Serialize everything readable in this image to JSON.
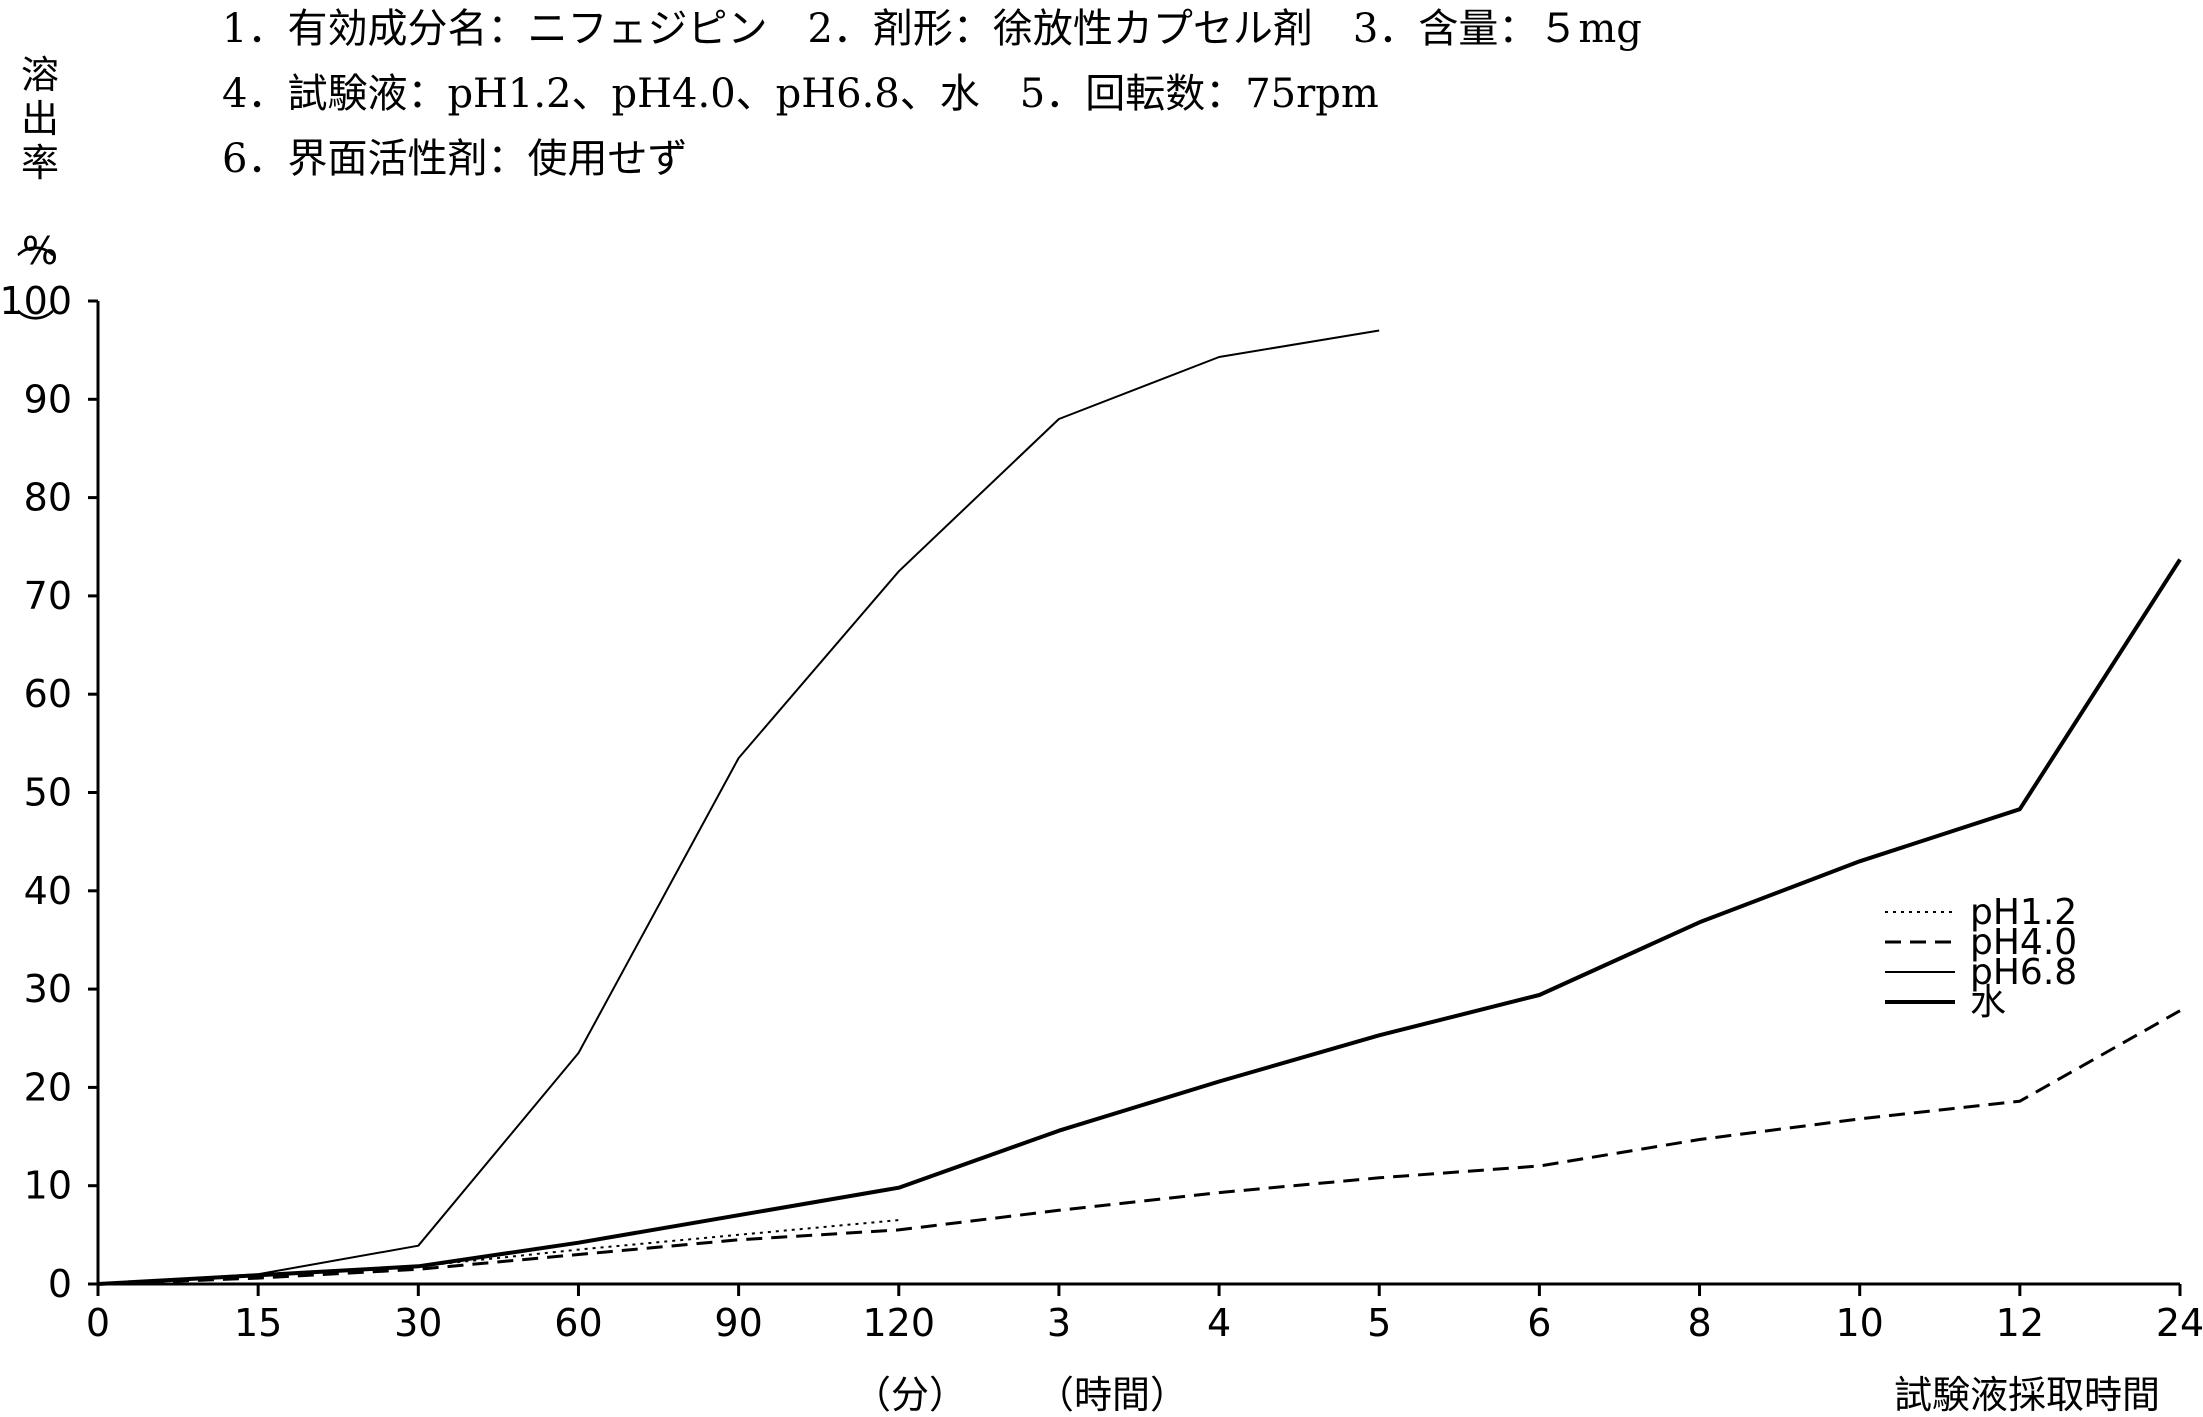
{
  "header": {
    "lines": [
      "1．有効成分名：ニフェジピン　2．剤形：徐放性カプセル剤　3．含量：５mg",
      "4．試験液：pH1.2、pH4.0、pH6.8、水　5．回転数：75rpm",
      "6．界面活性剤：使用せず"
    ]
  },
  "chart_data": {
    "type": "line",
    "title": "",
    "ylabel": "溶出率（%）",
    "xlabel": "試験液採取時間",
    "x_unit_labels": [
      "（分）",
      "（時間）"
    ],
    "ylim": [
      0,
      100
    ],
    "y_ticks": [
      0,
      10,
      20,
      30,
      40,
      50,
      60,
      70,
      80,
      90,
      100
    ],
    "categories": [
      "0",
      "15",
      "30",
      "60",
      "90",
      "120",
      "3",
      "4",
      "5",
      "6",
      "8",
      "10",
      "12",
      "24"
    ],
    "legend_position": "right",
    "grid": false,
    "series": [
      {
        "name": "pH1.2",
        "style": "dotted",
        "width": 2,
        "values": [
          0,
          0.8,
          1.8,
          3.5,
          5,
          6.5,
          null,
          null,
          null,
          null,
          null,
          null,
          null,
          null
        ]
      },
      {
        "name": "pH4.0",
        "style": "dashed",
        "width": 3,
        "values": [
          0,
          0.6,
          1.5,
          3,
          4.5,
          5.5,
          7.5,
          9.3,
          10.8,
          12,
          14.7,
          16.8,
          18.6,
          27.8
        ]
      },
      {
        "name": "pH6.8",
        "style": "solid",
        "width": 2,
        "values": [
          0,
          1,
          3.9,
          23.5,
          53.5,
          72.5,
          88,
          94.3,
          97,
          null,
          null,
          null,
          null,
          null
        ]
      },
      {
        "name": "水",
        "style": "solid",
        "width": 4,
        "values": [
          0,
          0.9,
          1.8,
          4.2,
          7,
          9.8,
          15.6,
          20.6,
          25.3,
          29.4,
          36.8,
          43,
          48.3,
          73.7
        ]
      }
    ]
  }
}
